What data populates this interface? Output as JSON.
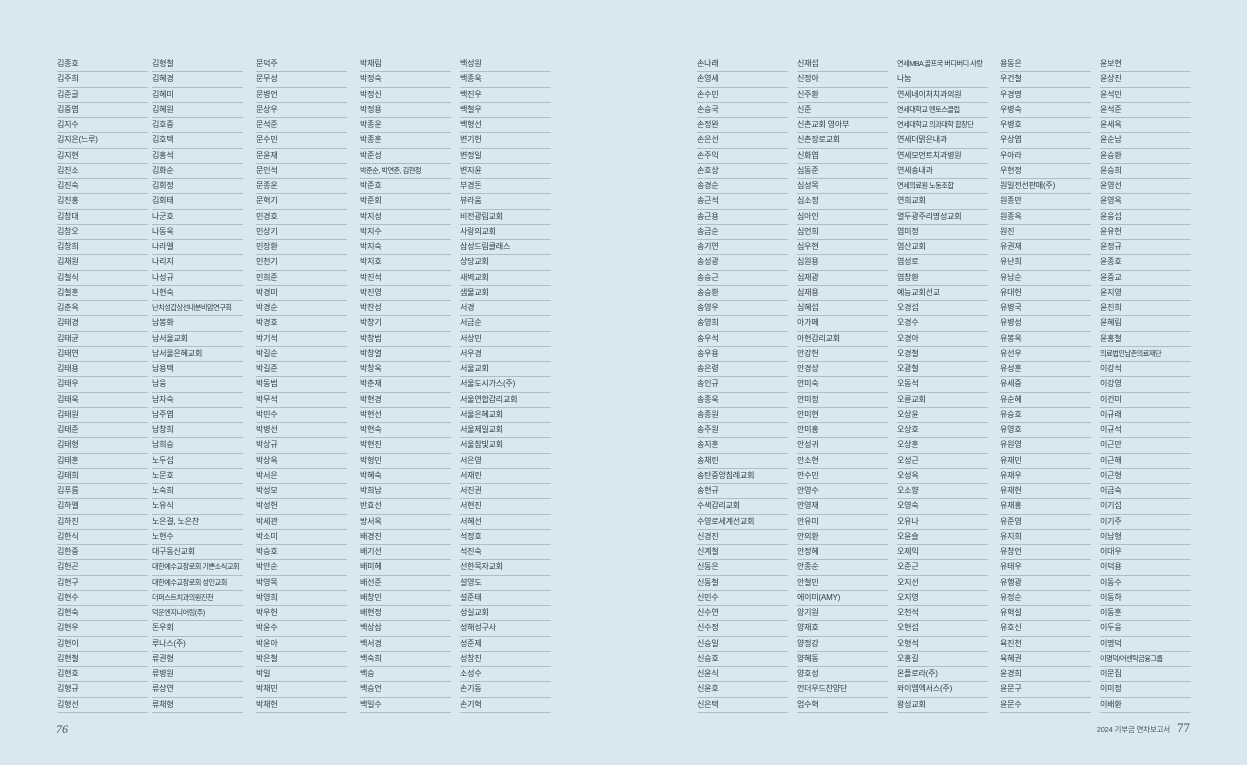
{
  "report": {
    "footer_left_page_number": "76",
    "footer_right_title": "2024 기부금 연차보고서",
    "footer_right_page_number": "77"
  },
  "colors": {
    "background": "#d9e7ef",
    "divider": "#a9bfcc",
    "text": "#2e3a42",
    "footer_text": "#46565f"
  },
  "pages": [
    {
      "name": "left",
      "columns": [
        {
          "rows": [
            "김종호",
            "김주희",
            "김준글",
            "김중엽",
            "김지수",
            "김지은(느루)",
            "김지현",
            "김진소",
            "김진숙",
            "김진홍",
            "김창대",
            "김창오",
            "김창희",
            "김채원",
            "김철식",
            "김철훈",
            "김춘옥",
            "김태경",
            "김태균",
            "김태연",
            "김태용",
            "김태우",
            "김태욱",
            "김태원",
            "김태준",
            "김태형",
            "김태훈",
            "김태희",
            "김푸름",
            "김하엘",
            "김하진",
            "김한식",
            "김한중",
            "김헌곤",
            "김현구",
            "김현수",
            "김현숙",
            "김현우",
            "김현이",
            "김현철",
            "김현호",
            "김형규",
            "김형선"
          ]
        },
        {
          "rows": [
            "김형철",
            "김혜경",
            "김혜미",
            "김혜원",
            "김호중",
            "김호택",
            "김홍석",
            "김화순",
            "김회정",
            "김회태",
            "나군호",
            "나동욱",
            "나라엘",
            "나리지",
            "나성규",
            "나현숙",
            "난치성갑상선내분비암연구회",
            "남봉화",
            "남서울교회",
            "남서울은혜교회",
            "남용택",
            "남웅",
            "남자숙",
            "남주엽",
            "남창희",
            "남희승",
            "노두섭",
            "노문호",
            "노숙희",
            "노유식",
            "노은결, 노은찬",
            "노현수",
            "대구동신교회",
            "대한예수교장로회 기쁜소식교회",
            "대한예수교장로회 성인교회",
            "더퍼스트치과의원진천",
            "덕운엔지니어링(주)",
            "돈우회",
            "루나스(주)",
            "류권형",
            "류병원",
            "류상연",
            "류채형"
          ]
        },
        {
          "rows": [
            "문덕주",
            "문무성",
            "문병언",
            "문상우",
            "문석준",
            "문수민",
            "문윤재",
            "문인석",
            "문종운",
            "문혁기",
            "민경호",
            "민상기",
            "민장환",
            "민천기",
            "민희준",
            "박경미",
            "박경순",
            "박경호",
            "박기석",
            "박길순",
            "박길준",
            "박동범",
            "박무석",
            "박민수",
            "박병선",
            "박상규",
            "박상옥",
            "박서은",
            "박성모",
            "박성헌",
            "박세관",
            "박소미",
            "박승호",
            "박안순",
            "박영목",
            "박영희",
            "박우헌",
            "박윤수",
            "박윤아",
            "박은철",
            "박일",
            "박재민",
            "박재헌"
          ]
        },
        {
          "rows": [
            "박재림",
            "박정숙",
            "박정신",
            "박정용",
            "박종운",
            "박종훈",
            "박준성",
            "박준순, 박연준, 김현정",
            "박준호",
            "박준회",
            "박지성",
            "박지수",
            "박지숙",
            "박지호",
            "박진석",
            "박진영",
            "박찬성",
            "박창기",
            "박창범",
            "박창열",
            "박창욱",
            "박춘재",
            "박현경",
            "박현선",
            "박현숙",
            "박현진",
            "박형민",
            "박혜숙",
            "박희남",
            "반효선",
            "방서옥",
            "배경진",
            "배기선",
            "배미혜",
            "배선준",
            "배창민",
            "배현정",
            "백상삼",
            "백서경",
            "백숙희",
            "백승",
            "백승언",
            "백일수"
          ]
        },
        {
          "rows": [
            "백성원",
            "백종욱",
            "백진우",
            "백철우",
            "백형선",
            "변기헌",
            "변정일",
            "변지윤",
            "부경돈",
            "뷰라움",
            "비전광림교회",
            "사랑의교회",
            "삼성드림클래스",
            "상당교회",
            "새벽교회",
            "샘물교회",
            "서경",
            "서금순",
            "서상민",
            "서우경",
            "서울교회",
            "서울도시가스(주)",
            "서울연합감리교회",
            "서울은혜교회",
            "서울제일교회",
            "서울참빛교회",
            "서은영",
            "서재린",
            "서진권",
            "서현진",
            "서혜선",
            "석정호",
            "석진숙",
            "선한목자교회",
            "설영도",
            "설준태",
            "성실교회",
            "성해성구사",
            "성준제",
            "성창진",
            "소성수",
            "손기동",
            "손기혁"
          ]
        }
      ]
    },
    {
      "name": "right",
      "columns": [
        {
          "rows": [
            "손나래",
            "손영세",
            "손수민",
            "손승국",
            "손정완",
            "손은선",
            "손주익",
            "손호상",
            "송경순",
            "송근석",
            "송근용",
            "송금순",
            "송기연",
            "송성광",
            "송승근",
            "송승환",
            "송영우",
            "송영희",
            "송우석",
            "송우용",
            "송은령",
            "송인규",
            "송종욱",
            "송종원",
            "송주원",
            "송지훈",
            "송채린",
            "송탄중앙침례교회",
            "송현규",
            "수색감리교회",
            "수영로세계선교회",
            "신경진",
            "신계철",
            "신동은",
            "신동철",
            "신민수",
            "신수연",
            "신수정",
            "신승일",
            "신승호",
            "신윤식",
            "신윤호",
            "신은택"
          ]
        },
        {
          "rows": [
            "신재섭",
            "신정아",
            "신주환",
            "신준",
            "신촌교회 영아부",
            "신촌장로교회",
            "신화엽",
            "심동준",
            "심성목",
            "심소정",
            "심아인",
            "심언희",
            "심우현",
            "심원용",
            "심재광",
            "심재용",
            "심혜섭",
            "아가페",
            "아현감리교회",
            "안강헌",
            "안경상",
            "안미숙",
            "안미정",
            "안미현",
            "안미홍",
            "안성귀",
            "안소현",
            "안수민",
            "안영수",
            "안영재",
            "안유미",
            "안의환",
            "안정혜",
            "안종순",
            "안철민",
            "에이미(AMY)",
            "양기원",
            "양재호",
            "양정강",
            "양혜동",
            "양호성",
            "언더우드찬양단",
            "엄수혁"
          ]
        },
        {
          "rows": [
            "연세MBA 골프국 버디버디 사랑",
            "나눔",
            "연세네이처치과의원",
            "연세대학교 멘토스클럽",
            "연세대학교 의과대학 합창단",
            "연세더맑은내과",
            "연세모먼트치과병원",
            "연세송내과",
            "연세의료원 노동조합",
            "연희교회",
            "열두광주리명성교회",
            "염미정",
            "염산교회",
            "염성로",
            "염창환",
            "예능교회선교",
            "오경섭",
            "오경수",
            "오경아",
            "오경철",
            "오광철",
            "오동석",
            "오륜교회",
            "오상윤",
            "오상호",
            "오상훈",
            "오성근",
            "오성옥",
            "오소향",
            "오영숙",
            "오유나",
            "오윤슬",
            "오제익",
            "오준근",
            "오지선",
            "오지영",
            "오천석",
            "오현섭",
            "오형석",
            "오홍길",
            "온플로라(주)",
            "와이엠엑서스(주)",
            "왕성교회"
          ]
        },
        {
          "rows": [
            "용동은",
            "우건철",
            "우경명",
            "우병숙",
            "우병호",
            "우상엽",
            "우아라",
            "우현정",
            "원일전선판매(주)",
            "원종만",
            "원종옥",
            "원진",
            "유권재",
            "유난희",
            "유남순",
            "유대헌",
            "유병국",
            "유병성",
            "유봉옥",
            "유선우",
            "유성훈",
            "유세중",
            "유순혜",
            "유승호",
            "유영호",
            "유원영",
            "유재민",
            "유재우",
            "유재헌",
            "유재홍",
            "유준영",
            "유지희",
            "유창언",
            "유태우",
            "유행광",
            "유정순",
            "유혁설",
            "유호신",
            "육진천",
            "육혜권",
            "윤경희",
            "윤문구",
            "윤문수"
          ]
        },
        {
          "rows": [
            "윤보현",
            "윤상진",
            "윤석민",
            "윤석준",
            "윤세옥",
            "윤순남",
            "윤승환",
            "윤승희",
            "윤영선",
            "윤영옥",
            "윤웅섭",
            "윤유헌",
            "윤정규",
            "윤종호",
            "윤중교",
            "윤지영",
            "윤진희",
            "윤혜림",
            "윤홍철",
            "의료법인남촌의료재단",
            "이강석",
            "이강영",
            "이건미",
            "이규래",
            "이규석",
            "이근만",
            "이근해",
            "이근형",
            "이금숙",
            "이기섭",
            "이기주",
            "이남형",
            "이대우",
            "이덕용",
            "이동수",
            "이동하",
            "이동훈",
            "이두웅",
            "이명덕",
            "이명덕/어센틱금융그룹",
            "이문집",
            "이미정",
            "이배환"
          ]
        }
      ]
    }
  ],
  "wrap_rows": [
    {
      "page": 1,
      "column": 2,
      "row": 0
    }
  ]
}
